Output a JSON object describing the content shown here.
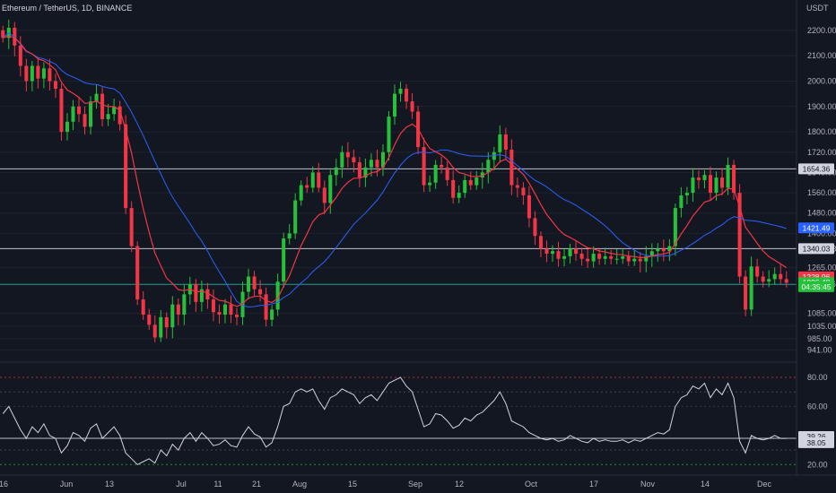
{
  "header": {
    "symbol_text": "Ethereum / TetherUS, 1D, BINANCE",
    "currency": "USDT"
  },
  "colors": {
    "background": "#131722",
    "up": "#26c03a",
    "down": "#f23645",
    "ema_fast": "#f23645",
    "sma_slow": "#2962ff",
    "rsi_line": "#d1d4dc",
    "hline": "#d1d4dc",
    "support_line": "#26a69a"
  },
  "chart_data": [
    {
      "type": "candlestick",
      "title": "",
      "y_axis_ticks": [
        2200.0,
        2100.0,
        2000.0,
        1900.0,
        1800.0,
        1720.0,
        1640.0,
        1560.0,
        1480.0,
        1400.0,
        1340.0,
        1265.0,
        1199.36,
        1085.0,
        1035.0,
        985.0,
        941.0
      ],
      "y_tick_labels": [
        "2200.00",
        "2100.00",
        "2000.00",
        "1900.00",
        "1800.00",
        "1720.00",
        "1640.00",
        "1560.00",
        "1480.00",
        "1400.00",
        "1340.03",
        "1265.00",
        "1199.36",
        "1085.00",
        "1035.00",
        "985.00",
        "941.00"
      ],
      "x_tick_labels": [
        "16",
        "Jun",
        "13",
        "Jul",
        "11",
        "21",
        "Aug",
        "15",
        "Sep",
        "12",
        "Oct",
        "17",
        "Nov",
        "14",
        "Dec"
      ],
      "horizontal_lines": [
        {
          "value": 1654.36,
          "label": "1654.36"
        },
        {
          "value": 1340.03,
          "label": "1340.03"
        },
        {
          "value": 1199.36,
          "label": "1199.36",
          "style": "support"
        }
      ],
      "price_labels": [
        {
          "value": 1421.49,
          "label": "1421.49",
          "color": "#2962ff"
        },
        {
          "value": 1228.96,
          "label": "1228.96",
          "color": "#f23645"
        },
        {
          "value": 1206.48,
          "label": "1206.48",
          "color": "#26c03a"
        },
        {
          "value": 1190.0,
          "label": "04:35:45",
          "color": "#26c03a"
        }
      ],
      "closes": [
        2170,
        2210,
        2140,
        2060,
        2000,
        2060,
        2010,
        2050,
        2000,
        1970,
        1800,
        1840,
        1900,
        1870,
        1820,
        1920,
        1950,
        1850,
        1870,
        1900,
        1830,
        1500,
        1350,
        1140,
        1080,
        1040,
        990,
        1070,
        1030,
        1120,
        1080,
        1160,
        1200,
        1130,
        1180,
        1140,
        1090,
        1080,
        1120,
        1080,
        1070,
        1170,
        1230,
        1180,
        1160,
        1060,
        1100,
        1210,
        1380,
        1400,
        1530,
        1590,
        1580,
        1640,
        1580,
        1520,
        1630,
        1660,
        1720,
        1700,
        1680,
        1620,
        1660,
        1690,
        1660,
        1720,
        1860,
        1950,
        1970,
        1920,
        1880,
        1740,
        1590,
        1600,
        1670,
        1660,
        1610,
        1540,
        1560,
        1610,
        1590,
        1620,
        1640,
        1690,
        1720,
        1790,
        1730,
        1590,
        1580,
        1550,
        1460,
        1390,
        1340,
        1320,
        1330,
        1300,
        1310,
        1340,
        1320,
        1300,
        1290,
        1320,
        1300,
        1310,
        1300,
        1300,
        1310,
        1290,
        1300,
        1290,
        1310,
        1330,
        1340,
        1330,
        1350,
        1500,
        1550,
        1560,
        1620,
        1610,
        1630,
        1560,
        1620,
        1580,
        1670,
        1560,
        1230,
        1100,
        1270,
        1230,
        1210,
        1220,
        1240,
        1220,
        1206
      ],
      "opens": [
        2200,
        2170,
        2210,
        2140,
        2060,
        2000,
        2060,
        2010,
        2050,
        2000,
        1970,
        1800,
        1840,
        1900,
        1870,
        1820,
        1920,
        1950,
        1850,
        1870,
        1900,
        1830,
        1500,
        1350,
        1140,
        1080,
        1040,
        990,
        1070,
        1030,
        1120,
        1080,
        1160,
        1200,
        1130,
        1180,
        1140,
        1090,
        1080,
        1120,
        1080,
        1070,
        1170,
        1230,
        1180,
        1160,
        1060,
        1100,
        1210,
        1380,
        1400,
        1530,
        1590,
        1580,
        1640,
        1580,
        1520,
        1630,
        1660,
        1720,
        1700,
        1680,
        1620,
        1660,
        1690,
        1660,
        1720,
        1860,
        1950,
        1970,
        1920,
        1880,
        1740,
        1590,
        1600,
        1670,
        1660,
        1610,
        1540,
        1560,
        1610,
        1590,
        1620,
        1640,
        1690,
        1720,
        1790,
        1730,
        1590,
        1580,
        1550,
        1460,
        1390,
        1340,
        1320,
        1330,
        1300,
        1310,
        1340,
        1320,
        1300,
        1290,
        1320,
        1300,
        1310,
        1300,
        1300,
        1310,
        1290,
        1300,
        1290,
        1310,
        1330,
        1340,
        1330,
        1350,
        1500,
        1550,
        1560,
        1620,
        1610,
        1630,
        1560,
        1620,
        1580,
        1670,
        1560,
        1230,
        1100,
        1270,
        1230,
        1210,
        1220,
        1240,
        1220
      ],
      "price_range": [
        900,
        2270
      ]
    },
    {
      "type": "line",
      "title": "",
      "y_tick_labels": [
        "80.00",
        "60.00",
        "20.00"
      ],
      "y_ticks": [
        80,
        60,
        20
      ],
      "levels": [
        {
          "value": 70
        },
        {
          "value": 30
        }
      ],
      "current_labels": [
        {
          "value": 39.26,
          "label": "39.26"
        },
        {
          "value": 38.05,
          "label": "38.05"
        }
      ],
      "rsi": [
        55,
        60,
        52,
        44,
        38,
        46,
        42,
        48,
        40,
        38,
        28,
        33,
        42,
        40,
        36,
        45,
        48,
        38,
        42,
        46,
        40,
        28,
        24,
        20,
        22,
        24,
        21,
        30,
        26,
        34,
        30,
        38,
        42,
        36,
        42,
        38,
        33,
        34,
        37,
        33,
        32,
        40,
        46,
        41,
        39,
        32,
        35,
        46,
        60,
        62,
        70,
        72,
        70,
        72,
        64,
        58,
        66,
        68,
        72,
        70,
        68,
        62,
        66,
        68,
        64,
        70,
        76,
        78,
        80,
        74,
        70,
        58,
        46,
        48,
        55,
        54,
        50,
        45,
        47,
        52,
        50,
        54,
        56,
        60,
        64,
        70,
        62,
        50,
        48,
        46,
        42,
        40,
        38,
        37,
        38,
        36,
        37,
        40,
        38,
        36,
        35,
        38,
        36,
        37,
        36,
        36,
        37,
        35,
        37,
        36,
        38,
        40,
        42,
        41,
        44,
        60,
        66,
        68,
        74,
        72,
        76,
        66,
        72,
        68,
        76,
        66,
        36,
        28,
        40,
        38,
        37,
        38,
        40,
        38,
        38
      ],
      "y_range": [
        14,
        88
      ]
    }
  ]
}
